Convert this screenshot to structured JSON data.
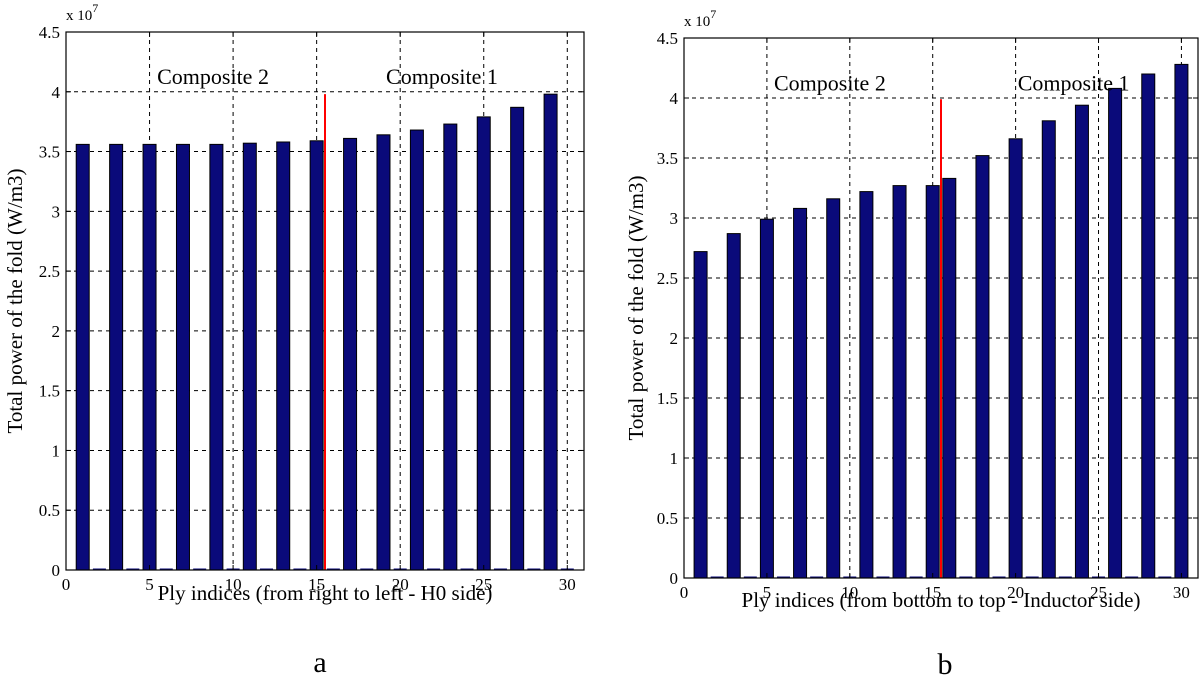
{
  "colors": {
    "bar_fill": "#0a0a7a",
    "bar_edge": "#000000",
    "divider": "#ff0000",
    "grid": "#000000"
  },
  "chart_data": [
    {
      "type": "bar",
      "panel_label": "a",
      "title": "",
      "xlabel": "Ply indices (from right to left - H0 side)",
      "ylabel": "Total power of the fold (W/m3)",
      "y_exponent_label": "x 10",
      "y_exponent_power": "7",
      "y_scale": 10000000,
      "xlim": [
        0,
        31
      ],
      "ylim": [
        0,
        4.5
      ],
      "xticks": [
        0,
        5,
        10,
        15,
        20,
        25,
        30
      ],
      "yticks": [
        0,
        0.5,
        1,
        1.5,
        2,
        2.5,
        3,
        3.5,
        4,
        4.5
      ],
      "ytick_labels": [
        "0",
        "0.5",
        "1",
        "1.5",
        "2",
        "2.5",
        "3",
        "3.5",
        "4",
        "4.5"
      ],
      "grid": true,
      "bars_x": [
        1,
        3,
        5,
        7,
        9,
        11,
        13,
        15,
        17,
        19,
        21,
        23,
        25,
        27,
        29
      ],
      "bars_y": [
        3.56,
        3.56,
        3.56,
        3.56,
        3.56,
        3.57,
        3.58,
        3.59,
        3.61,
        3.64,
        3.68,
        3.73,
        3.79,
        3.87,
        3.98
      ],
      "zero_bars_x": [
        2,
        4,
        6,
        8,
        10,
        12,
        14,
        16,
        18,
        20,
        22,
        24,
        26,
        28,
        30
      ],
      "divider_x": 15.5,
      "divider_top": 3.98,
      "annotations": [
        {
          "text": "Composite 2",
          "x": 8.8,
          "y": 4.13
        },
        {
          "text": "Composite 1",
          "x": 22.5,
          "y": 4.13
        }
      ]
    },
    {
      "type": "bar",
      "panel_label": "b",
      "title": "",
      "xlabel": "Ply indices (from bottom to top - Inductor side)",
      "ylabel": "Total power of the fold (W/m3)",
      "y_exponent_label": "x 10",
      "y_exponent_power": "7",
      "y_scale": 10000000,
      "xlim": [
        0,
        31
      ],
      "ylim": [
        0,
        4.5
      ],
      "xticks": [
        0,
        5,
        10,
        15,
        20,
        25,
        30
      ],
      "yticks": [
        0,
        0.5,
        1,
        1.5,
        2,
        2.5,
        3,
        3.5,
        4,
        4.5
      ],
      "ytick_labels": [
        "0",
        "0.5",
        "1",
        "1.5",
        "2",
        "2.5",
        "3",
        "3.5",
        "4",
        "4.5"
      ],
      "grid": true,
      "bars_x": [
        1,
        3,
        5,
        7,
        9,
        11,
        13,
        15,
        16,
        18,
        20,
        22,
        24,
        26,
        28,
        30
      ],
      "bars_y": [
        2.72,
        2.87,
        2.99,
        3.08,
        3.16,
        3.22,
        3.27,
        3.27,
        3.33,
        3.52,
        3.66,
        3.81,
        3.94,
        4.08,
        4.2,
        4.28
      ],
      "zero_bars_x": [
        2,
        4,
        6,
        8,
        10,
        12,
        14,
        17,
        19,
        21,
        23,
        25,
        27,
        29
      ],
      "divider_x": 15.5,
      "divider_top": 3.99,
      "annotations": [
        {
          "text": "Composite 2",
          "x": 8.8,
          "y": 4.13
        },
        {
          "text": "Composite 1",
          "x": 23.5,
          "y": 4.13
        }
      ]
    }
  ]
}
